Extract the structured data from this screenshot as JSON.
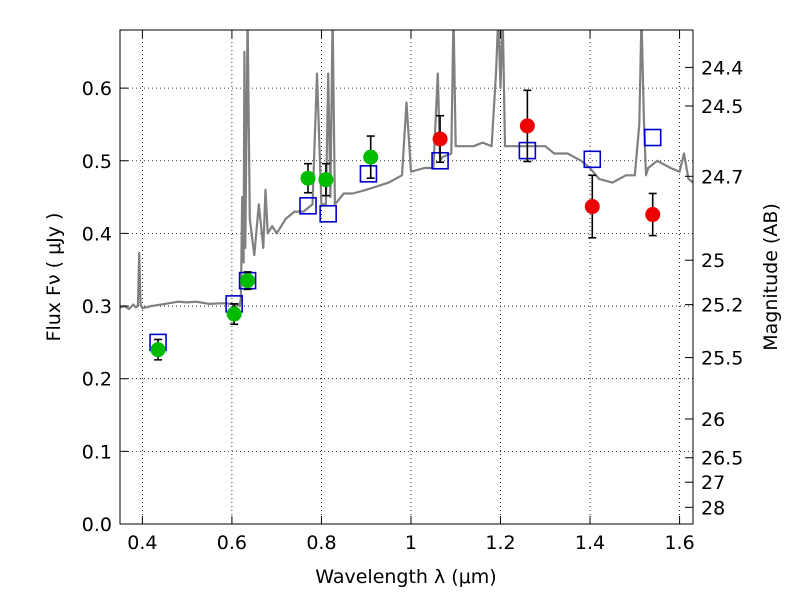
{
  "chart_data": {
    "type": "scatter",
    "title": "",
    "xlabel": "Wavelength  λ (μm)",
    "ylabel": "Flux  Fν  ( μJy )",
    "ylabel_right": "Magnitude (AB)",
    "xlim": [
      0.35,
      1.63
    ],
    "ylim": [
      0.0,
      0.68
    ],
    "grid": true,
    "x_ticks": [
      0.4,
      0.6,
      0.8,
      1.0,
      1.2,
      1.4,
      1.6
    ],
    "x_tick_labels": [
      "0.4",
      "0.6",
      "0.8",
      "1",
      "1.2",
      "1.4",
      "1.6"
    ],
    "y_ticks": [
      0.0,
      0.1,
      0.2,
      0.3,
      0.4,
      0.5,
      0.6
    ],
    "y_tick_labels": [
      "0.0",
      "0.1",
      "0.2",
      "0.3",
      "0.4",
      "0.5",
      "0.6"
    ],
    "right_axis_ticks": [
      {
        "label": "24.4",
        "flux": 0.6285
      },
      {
        "label": "24.5",
        "flux": 0.5754
      },
      {
        "label": "24.7",
        "flux": 0.4786
      },
      {
        "label": "25",
        "flux": 0.3631
      },
      {
        "label": "25.2",
        "flux": 0.302
      },
      {
        "label": "25.5",
        "flux": 0.2291
      },
      {
        "label": "26",
        "flux": 0.1445
      },
      {
        "label": "26.5",
        "flux": 0.0912
      },
      {
        "label": "27",
        "flux": 0.0575
      },
      {
        "label": "28",
        "flux": 0.0229
      }
    ],
    "series": [
      {
        "name": "model spectrum",
        "kind": "line",
        "color": "#808080",
        "x": [
          0.35,
          0.36,
          0.37,
          0.38,
          0.385,
          0.39,
          0.393,
          0.396,
          0.4,
          0.42,
          0.45,
          0.48,
          0.5,
          0.52,
          0.55,
          0.58,
          0.6,
          0.61,
          0.615,
          0.617,
          0.62,
          0.623,
          0.626,
          0.628,
          0.63,
          0.635,
          0.64,
          0.65,
          0.66,
          0.67,
          0.675,
          0.68,
          0.69,
          0.7,
          0.72,
          0.74,
          0.76,
          0.78,
          0.79,
          0.8,
          0.81,
          0.815,
          0.82,
          0.825,
          0.83,
          0.85,
          0.87,
          0.9,
          0.95,
          0.98,
          0.99,
          1.0,
          1.03,
          1.05,
          1.06,
          1.065,
          1.07,
          1.09,
          1.095,
          1.1,
          1.12,
          1.14,
          1.16,
          1.18,
          1.19,
          1.195,
          1.2,
          1.205,
          1.21,
          1.25,
          1.28,
          1.3,
          1.32,
          1.35,
          1.38,
          1.4,
          1.42,
          1.45,
          1.48,
          1.5,
          1.51,
          1.515,
          1.52,
          1.525,
          1.53,
          1.55,
          1.58,
          1.6,
          1.61,
          1.62,
          1.63
        ],
        "values": [
          0.298,
          0.3,
          0.296,
          0.302,
          0.298,
          0.3,
          0.373,
          0.302,
          0.297,
          0.3,
          0.303,
          0.306,
          0.305,
          0.306,
          0.303,
          0.304,
          0.303,
          0.3,
          0.303,
          0.3,
          0.31,
          0.45,
          0.36,
          0.65,
          0.38,
          0.7,
          0.42,
          0.37,
          0.44,
          0.38,
          0.46,
          0.4,
          0.41,
          0.4,
          0.42,
          0.43,
          0.43,
          0.44,
          0.62,
          0.44,
          0.44,
          0.62,
          0.45,
          0.7,
          0.44,
          0.455,
          0.455,
          0.46,
          0.47,
          0.48,
          0.58,
          0.485,
          0.49,
          0.49,
          0.62,
          0.5,
          0.505,
          0.51,
          0.7,
          0.52,
          0.52,
          0.52,
          0.525,
          0.52,
          0.62,
          0.7,
          0.6,
          0.7,
          0.52,
          0.52,
          0.52,
          0.52,
          0.51,
          0.51,
          0.5,
          0.49,
          0.475,
          0.47,
          0.48,
          0.48,
          0.55,
          0.7,
          0.56,
          0.48,
          0.49,
          0.5,
          0.49,
          0.485,
          0.51,
          0.475,
          0.47
        ]
      },
      {
        "name": "model photometry",
        "kind": "open-square",
        "color": "#0000cc",
        "x": [
          0.435,
          0.605,
          0.635,
          0.77,
          0.815,
          0.905,
          1.065,
          1.26,
          1.405,
          1.54
        ],
        "values": [
          0.25,
          0.303,
          0.335,
          0.438,
          0.427,
          0.482,
          0.5,
          0.514,
          0.502,
          0.532
        ]
      },
      {
        "name": "observed (green)",
        "kind": "filled-circle",
        "color": "#00bb00",
        "x": [
          0.435,
          0.605,
          0.635,
          0.77,
          0.81,
          0.91
        ],
        "values": [
          0.24,
          0.289,
          0.335,
          0.476,
          0.474,
          0.505
        ],
        "errors": [
          0.014,
          0.014,
          0.012,
          0.02,
          0.022,
          0.029
        ]
      },
      {
        "name": "observed (red)",
        "kind": "filled-circle",
        "color": "#ee0000",
        "x": [
          1.065,
          1.26,
          1.405,
          1.54
        ],
        "values": [
          0.53,
          0.548,
          0.437,
          0.426
        ],
        "errors": [
          0.032,
          0.049,
          0.043,
          0.029
        ]
      }
    ]
  }
}
